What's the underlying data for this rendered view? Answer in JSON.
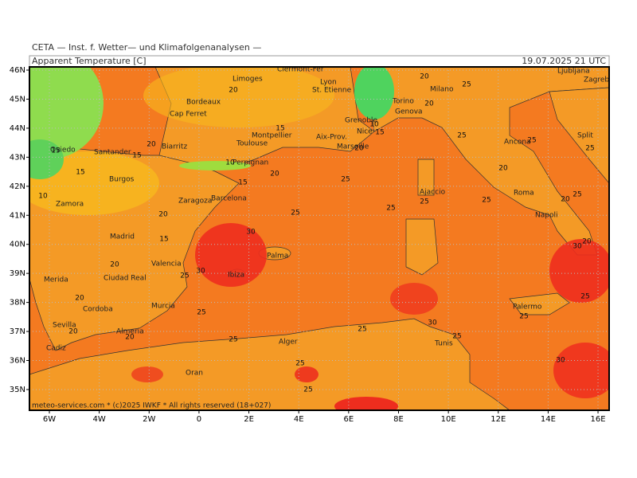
{
  "header": {
    "institute": "CETA — Inst. f. Wetter— und Klimafolgenanalysen —",
    "title": "Apparent Temperature [C]",
    "timestamp": "19.07.2025 21 UTC"
  },
  "axes": {
    "latitudes": [
      "46N",
      "45N",
      "44N",
      "43N",
      "42N",
      "41N",
      "40N",
      "39N",
      "38N",
      "37N",
      "36N",
      "35N"
    ],
    "longitudes": [
      "6W",
      "4W",
      "2W",
      "0",
      "2E",
      "4E",
      "6E",
      "8E",
      "10E",
      "12E",
      "14E",
      "16E"
    ]
  },
  "cities": [
    "Clermont-Fer",
    "Limoges",
    "Lyon",
    "Bordeaux",
    "St. Etienne",
    "Grenoble",
    "Torino",
    "Milano",
    "Genova",
    "Cap Ferret",
    "Montpellier",
    "Toulouse",
    "Nice",
    "Aix-Prov.",
    "Marseille",
    "Biarritz",
    "Oviedo",
    "Santander",
    "Perpignan",
    "Burgos",
    "Ajaccio",
    "Barcelona",
    "Zaragoza",
    "Zamora",
    "Madrid",
    "Roma",
    "Napoli",
    "Ancona",
    "Split",
    "Zagreb",
    "Ljubljana",
    "Valencia",
    "Palma",
    "Ibiza",
    "Merida",
    "Ciudad Real",
    "Cordoba",
    "Murcia",
    "Sevilla",
    "Almeria",
    "Cadiz",
    "Alger",
    "Tunis",
    "Oran",
    "Palermo"
  ],
  "contour_labels": [
    20,
    15,
    20,
    15,
    15,
    15,
    10,
    10,
    15,
    20,
    25,
    25,
    20,
    30,
    25,
    25,
    25,
    20,
    25,
    25,
    20,
    25,
    20,
    30,
    25,
    25,
    30,
    15,
    20,
    25,
    30,
    20,
    20,
    20,
    25,
    25,
    25,
    30,
    25,
    25,
    25,
    20,
    25,
    20,
    10,
    15,
    20,
    25
  ],
  "footer": "meteo-services.com * (c)2025 IWKF * All rights reserved (18+027)"
}
